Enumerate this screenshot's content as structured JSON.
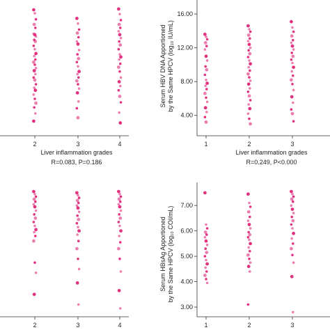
{
  "colors": {
    "point": "#e0287a",
    "axis": "#333333"
  },
  "chart_data": [
    {
      "type": "scatter",
      "position": "top-left",
      "xlabel": "Liver inflammation grades",
      "stat": "R=0.083, P=0.186",
      "x_ticks": [
        "2",
        "3",
        "4"
      ],
      "ylabel": "",
      "y_ticks": [],
      "ylim": [
        2.0,
        16.8
      ],
      "series": [
        {
          "x": 2,
          "values": [
            16.3,
            15.9,
            15.2,
            14.6,
            14.2,
            13.5,
            13.4,
            13.2,
            12.8,
            12.6,
            12.1,
            11.7,
            11.2,
            10.9,
            10.5,
            10.2,
            9.9,
            9.5,
            9.2,
            8.8,
            8.4,
            8.1,
            7.6,
            7.2,
            6.9,
            6.4,
            5.9,
            5.4,
            4.9,
            4.2,
            3.3
          ]
        },
        {
          "x": 3,
          "values": [
            15.3,
            14.7,
            14.0,
            13.6,
            13.1,
            12.6,
            12.3,
            11.6,
            11.1,
            10.6,
            10.2,
            9.7,
            9.1,
            8.8,
            8.4,
            8.0,
            7.6,
            7.1,
            6.6,
            5.6,
            4.8,
            3.7
          ]
        },
        {
          "x": 4,
          "values": [
            16.4,
            15.8,
            15.1,
            14.6,
            14.2,
            13.8,
            13.4,
            13.0,
            12.6,
            12.2,
            11.7,
            11.1,
            10.8,
            10.5,
            10.0,
            9.6,
            9.1,
            8.4,
            7.9,
            7.4,
            6.9,
            6.2,
            5.5,
            4.3,
            3.1
          ]
        }
      ]
    },
    {
      "type": "scatter",
      "position": "top-right",
      "xlabel": "Liver inflammation grades",
      "stat": "R=0.249, P<0.000",
      "x_ticks": [
        "1",
        "2",
        "3"
      ],
      "ylabel": "Serum HBV DNA Apportioned by the Same HPCV (log₁₀ IU/mL)",
      "y_ticks": [
        "4.00",
        "8.00",
        "12.00",
        "16.00"
      ],
      "ylim": [
        2.0,
        17.0
      ],
      "series": [
        {
          "x": 1,
          "values": [
            13.6,
            13.3,
            13.0,
            12.6,
            12.2,
            11.8,
            11.0,
            10.5,
            9.8,
            9.4,
            8.8,
            8.2,
            7.8,
            7.5,
            7.1,
            6.6,
            6.1,
            5.6,
            4.9,
            4.4,
            3.8,
            3.2
          ]
        },
        {
          "x": 2,
          "values": [
            14.6,
            14.2,
            13.9,
            13.5,
            13.1,
            12.8,
            12.4,
            12.0,
            11.7,
            11.3,
            10.9,
            10.5,
            10.1,
            9.7,
            9.3,
            8.9,
            8.5,
            8.1,
            7.7,
            7.2,
            6.8,
            6.3,
            5.8,
            5.3,
            4.8,
            4.2,
            3.6,
            3.0
          ]
        },
        {
          "x": 3,
          "values": [
            15.1,
            14.4,
            13.9,
            13.4,
            12.9,
            12.6,
            12.2,
            11.8,
            11.4,
            11.0,
            10.6,
            10.2,
            9.7,
            9.2,
            8.7,
            8.2,
            7.7,
            7.0,
            6.2,
            5.5,
            4.7,
            4.2,
            3.3
          ]
        }
      ]
    },
    {
      "type": "scatter",
      "position": "bottom-left",
      "xlabel": "",
      "stat": "",
      "x_ticks": [
        "2",
        "3",
        "4"
      ],
      "ylabel": "",
      "y_ticks": [],
      "ylim": [
        2.7,
        7.8
      ],
      "series": [
        {
          "x": 2,
          "values": [
            7.55,
            7.45,
            7.35,
            7.25,
            7.15,
            7.05,
            6.95,
            6.8,
            6.65,
            6.5,
            6.35,
            6.2,
            6.05,
            5.95,
            5.8,
            5.6,
            4.75,
            4.35,
            3.5
          ]
        },
        {
          "x": 3,
          "values": [
            7.5,
            7.4,
            7.3,
            7.2,
            7.1,
            7.0,
            6.9,
            6.75,
            6.6,
            6.45,
            6.3,
            6.15,
            6.0,
            5.85,
            5.6,
            5.3,
            4.9,
            4.5,
            3.95,
            3.1
          ]
        },
        {
          "x": 4,
          "values": [
            7.55,
            7.45,
            7.35,
            7.25,
            7.15,
            7.05,
            6.95,
            6.8,
            6.65,
            6.5,
            6.35,
            6.2,
            6.0,
            5.8,
            5.55,
            5.3,
            4.9,
            4.4,
            3.65,
            2.95
          ]
        }
      ]
    },
    {
      "type": "scatter",
      "position": "bottom-right",
      "xlabel": "",
      "stat": "",
      "x_ticks": [
        "1",
        "2",
        "3"
      ],
      "ylabel": "Serum HBsAg Apportioned by the Same HPCV (log₁₀ COI/mL)",
      "y_ticks": [
        "3.00",
        "4.00",
        "5.00",
        "6.00",
        "7.00"
      ],
      "ylim": [
        2.7,
        7.8
      ],
      "series": [
        {
          "x": 1,
          "values": [
            7.5,
            6.25,
            6.1,
            5.95,
            5.85,
            5.75,
            5.6,
            5.45,
            5.3,
            5.15,
            5.0,
            4.85,
            4.7,
            4.55,
            4.4,
            4.25,
            4.1,
            3.95
          ]
        },
        {
          "x": 2,
          "values": [
            7.45,
            7.1,
            6.95,
            6.75,
            6.55,
            6.4,
            6.25,
            6.1,
            5.95,
            5.85,
            5.75,
            5.65,
            5.5,
            5.35,
            5.2,
            5.05,
            4.9,
            4.75,
            4.6,
            4.4,
            3.1
          ]
        },
        {
          "x": 3,
          "values": [
            7.55,
            7.45,
            7.35,
            7.25,
            7.15,
            7.0,
            6.85,
            6.7,
            6.55,
            6.4,
            6.25,
            6.1,
            5.9,
            5.7,
            5.5,
            5.3,
            5.05,
            4.75,
            4.2,
            2.8
          ]
        }
      ]
    }
  ]
}
